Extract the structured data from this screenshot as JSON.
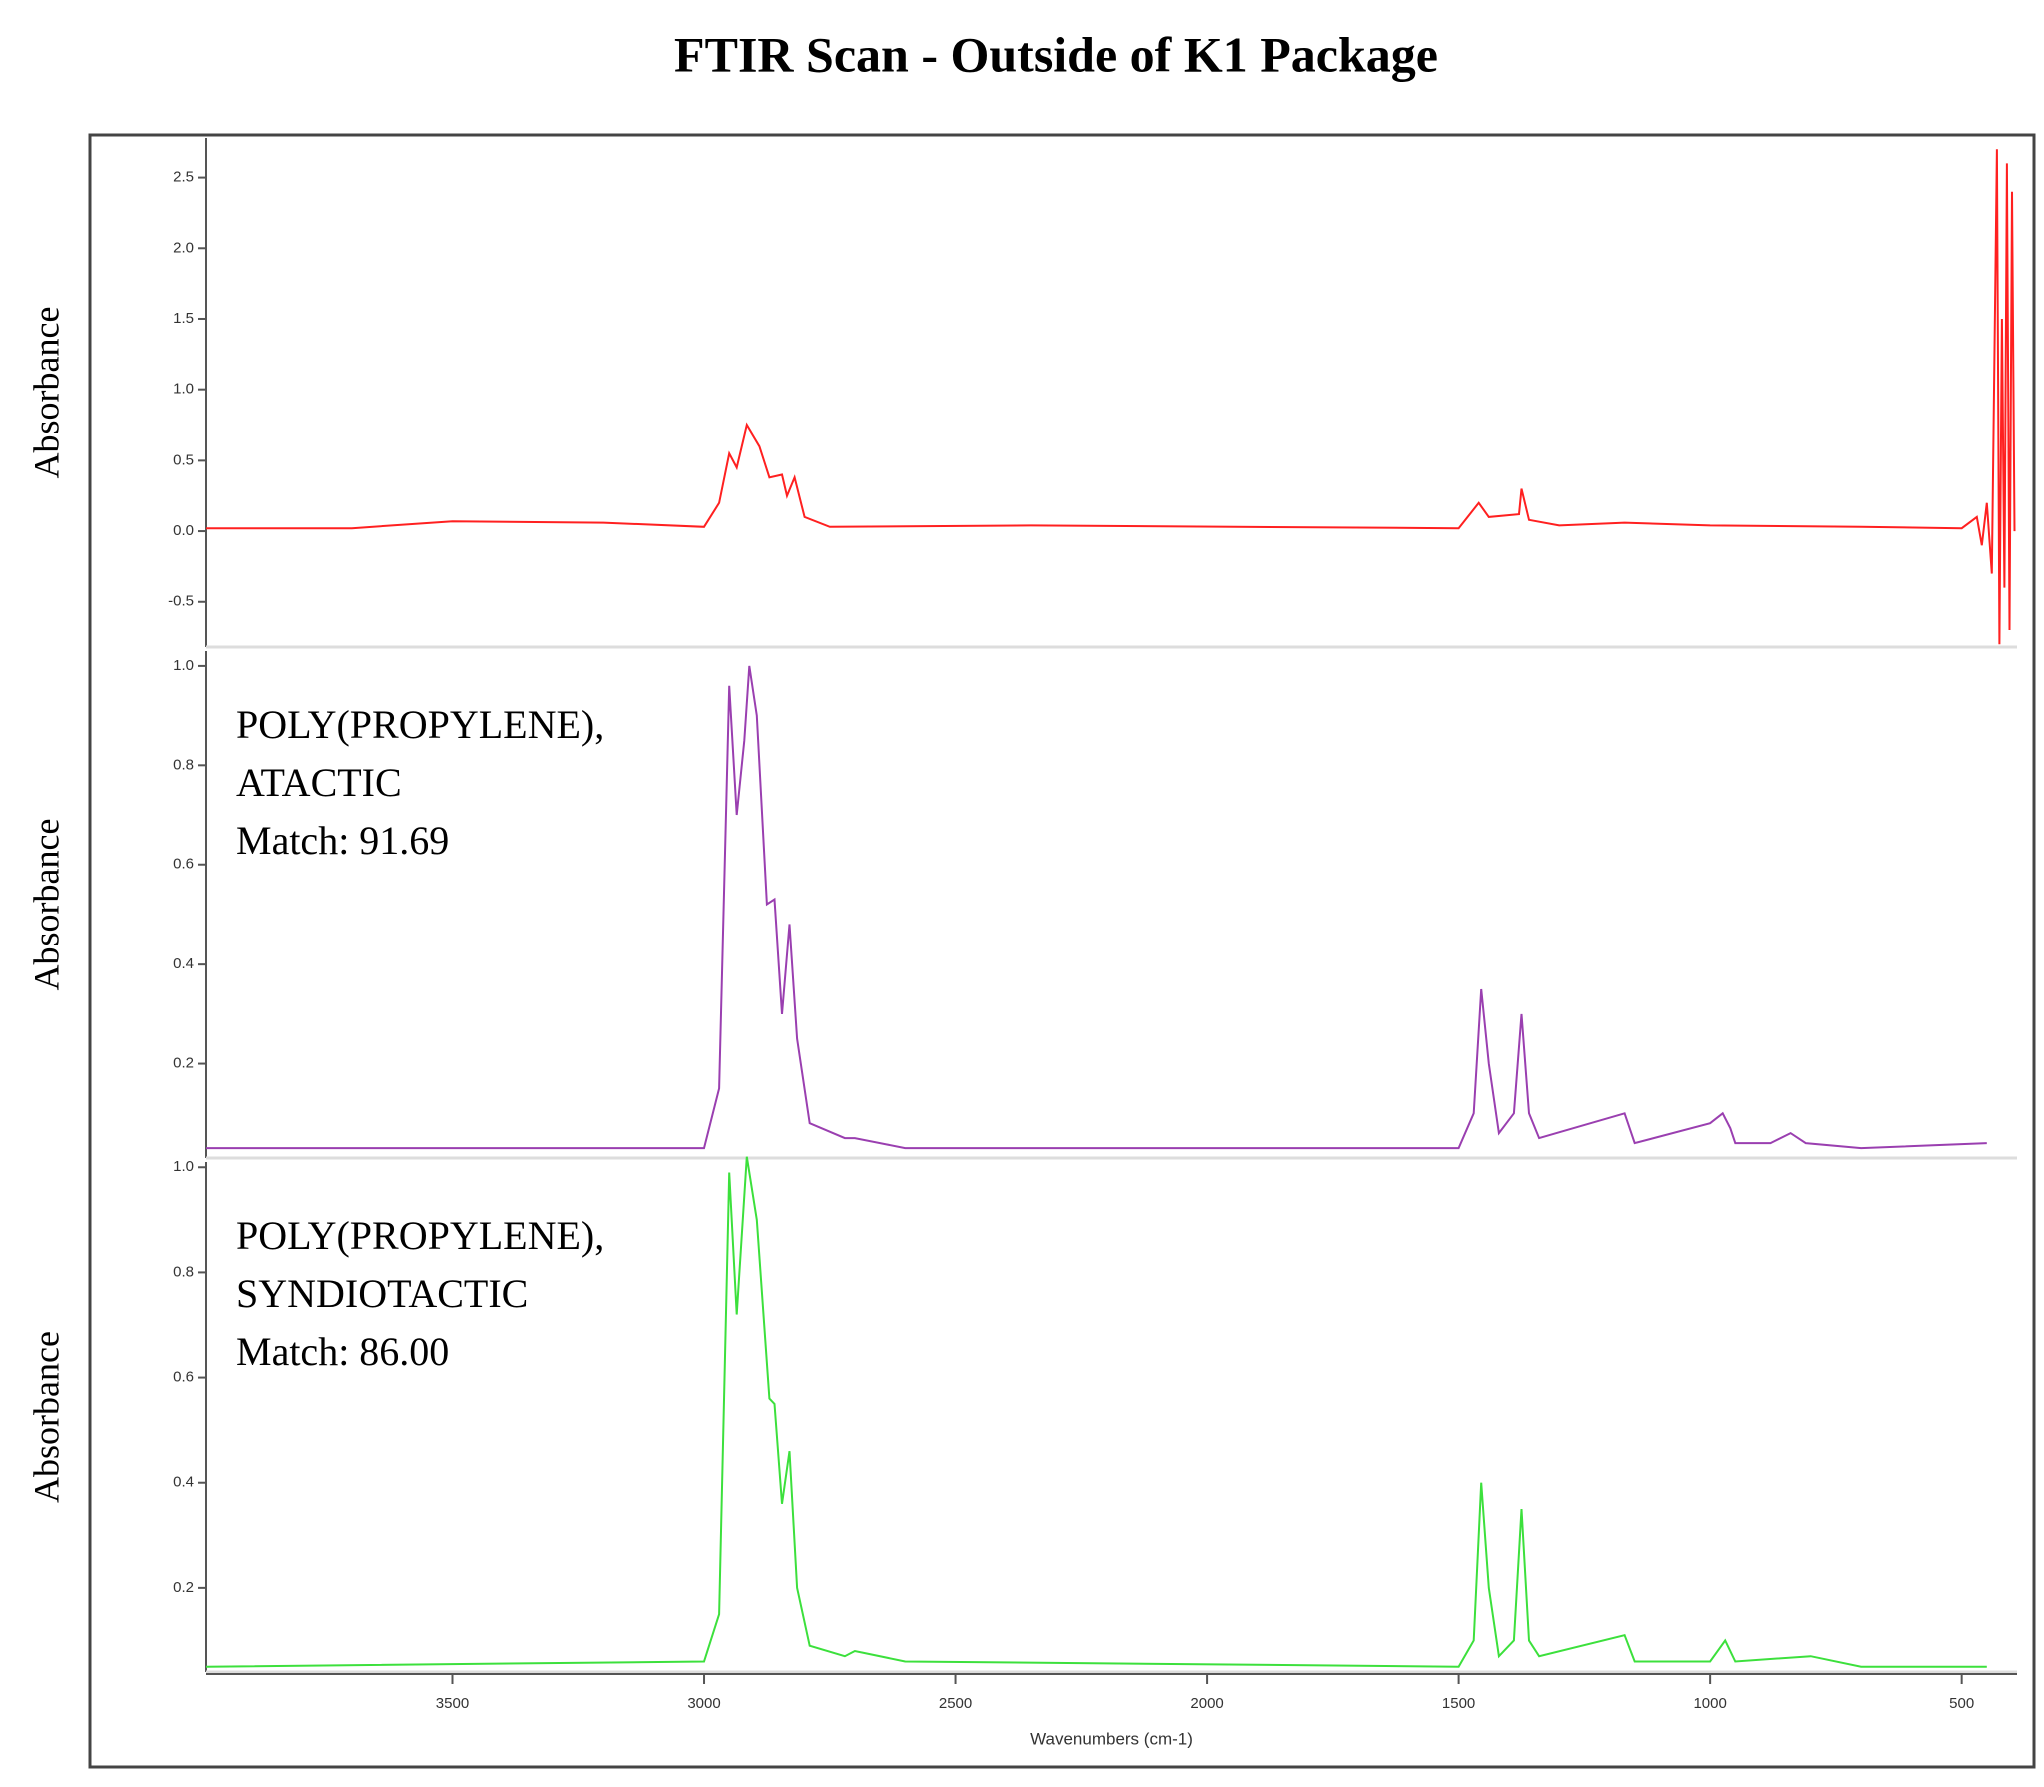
{
  "title": "FTIR Scan - Outside of K1 Package",
  "chart_data": [
    {
      "type": "line",
      "ylabel": "Absorbance",
      "xlim": [
        3990,
        390
      ],
      "ylim": [
        -0.82,
        2.78
      ],
      "yticks": [
        -0.5,
        {
          "value": 0,
          "label": "0.0"
        },
        0.5,
        {
          "value": 1,
          "label": "1.0"
        },
        1.5,
        {
          "value": 2,
          "label": "2.0"
        },
        2.5
      ],
      "x": [
        3990,
        3700,
        3500,
        3200,
        3000,
        2970,
        2950,
        2935,
        2915,
        2890,
        2870,
        2845,
        2835,
        2820,
        2800,
        2750,
        2350,
        1500,
        1460,
        1440,
        1380,
        1375,
        1360,
        1300,
        1170,
        1000,
        700,
        500,
        470,
        460,
        450,
        440,
        430,
        425,
        420,
        415,
        410,
        405,
        400,
        395
      ],
      "series": [
        {
          "color": "#ff2020",
          "values": [
            0.02,
            0.02,
            0.07,
            0.06,
            0.03,
            0.2,
            0.55,
            0.45,
            0.75,
            0.6,
            0.38,
            0.4,
            0.25,
            0.38,
            0.1,
            0.03,
            0.04,
            0.02,
            0.2,
            0.1,
            0.12,
            0.3,
            0.08,
            0.04,
            0.06,
            0.04,
            0.03,
            0.02,
            0.1,
            -0.1,
            0.2,
            -0.3,
            2.7,
            -0.8,
            1.5,
            -0.4,
            2.6,
            -0.7,
            2.4,
            0.0
          ]
        }
      ]
    },
    {
      "type": "line",
      "ylabel": "Absorbance",
      "annotation": [
        "POLY(PROPYLENE),",
        "ATACTIC",
        "Match: 91.69"
      ],
      "xlim": [
        3990,
        390
      ],
      "ylim": [
        0.01,
        1.03
      ],
      "yticks": [
        0.2,
        0.4,
        0.6,
        0.8,
        {
          "value": 1,
          "label": "1.0"
        }
      ],
      "x": [
        3990,
        3000,
        2970,
        2950,
        2935,
        2920,
        2910,
        2895,
        2875,
        2860,
        2845,
        2830,
        2815,
        2790,
        2720,
        2700,
        2600,
        1500,
        1470,
        1455,
        1440,
        1420,
        1390,
        1375,
        1360,
        1340,
        1170,
        1150,
        1000,
        975,
        960,
        950,
        880,
        840,
        810,
        700,
        450
      ],
      "series": [
        {
          "color": "#9a3fb0",
          "values": [
            0.03,
            0.03,
            0.15,
            0.96,
            0.7,
            0.85,
            1.0,
            0.9,
            0.52,
            0.53,
            0.3,
            0.48,
            0.25,
            0.08,
            0.05,
            0.05,
            0.03,
            0.03,
            0.1,
            0.35,
            0.2,
            0.06,
            0.1,
            0.3,
            0.1,
            0.05,
            0.1,
            0.04,
            0.08,
            0.1,
            0.07,
            0.04,
            0.04,
            0.06,
            0.04,
            0.03,
            0.04
          ]
        }
      ]
    },
    {
      "type": "line",
      "ylabel": "Absorbance",
      "annotation": [
        "POLY(PROPYLENE),",
        "SYNDIOTACTIC",
        "Match: 86.00"
      ],
      "xlim": [
        3990,
        390
      ],
      "ylim": [
        0.04,
        1.01
      ],
      "yticks": [
        0.2,
        0.4,
        0.6,
        0.8,
        {
          "value": 1,
          "label": "1.0"
        }
      ],
      "xticks": [
        3500,
        3000,
        2500,
        2000,
        1500,
        1000,
        500
      ],
      "xlabel": "Wavenumbers (cm-1)",
      "x": [
        3990,
        3000,
        2970,
        2950,
        2935,
        2915,
        2895,
        2870,
        2860,
        2845,
        2830,
        2815,
        2790,
        2720,
        2700,
        2600,
        1500,
        1470,
        1455,
        1440,
        1420,
        1390,
        1375,
        1360,
        1340,
        1170,
        1150,
        1000,
        970,
        950,
        800,
        700,
        450
      ],
      "series": [
        {
          "color": "#3ce03c",
          "values": [
            0.05,
            0.06,
            0.15,
            0.99,
            0.72,
            1.02,
            0.9,
            0.56,
            0.55,
            0.36,
            0.46,
            0.2,
            0.09,
            0.07,
            0.08,
            0.06,
            0.05,
            0.1,
            0.4,
            0.2,
            0.07,
            0.1,
            0.35,
            0.1,
            0.07,
            0.11,
            0.06,
            0.06,
            0.1,
            0.06,
            0.07,
            0.05,
            0.05
          ]
        }
      ]
    }
  ]
}
